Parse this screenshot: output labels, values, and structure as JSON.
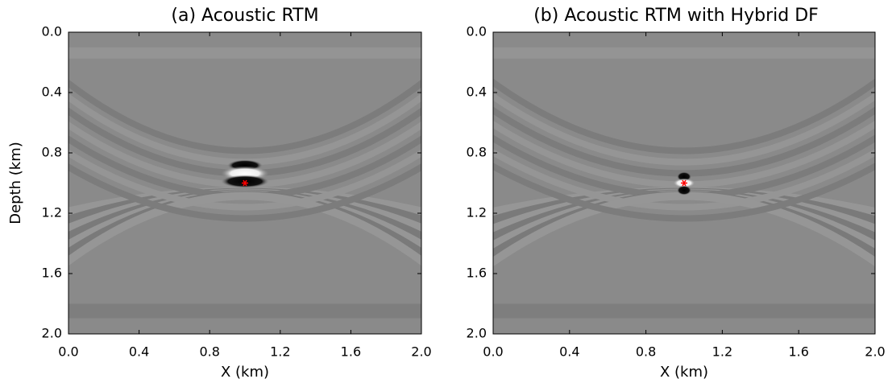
{
  "chart_data": [
    {
      "type": "image",
      "title": "(a) Acoustic RTM",
      "xlabel": "X (km)",
      "ylabel": "Depth (km)",
      "xlim": [
        0.0,
        2.0
      ],
      "ylim": [
        2.0,
        0.0
      ],
      "xticks": [
        {
          "value": 0.0,
          "label": "0.0"
        },
        0.4,
        0.8,
        1.2,
        1.6,
        {
          "value": 2.0,
          "label": "2.0"
        }
      ],
      "yticks": [
        {
          "value": 0.0,
          "label": "0.0"
        },
        0.4,
        0.8,
        1.2,
        1.6,
        {
          "value": 2.0,
          "label": "2.0"
        }
      ],
      "points": {
        "x": [
          1.0
        ],
        "y": [
          1.0
        ],
        "color": "#ff0000"
      }
    },
    {
      "type": "image",
      "title": "(b) Acoustic RTM with Hybrid DF",
      "xlabel": "X (km)",
      "xlim": [
        0.0,
        2.0
      ],
      "ylim": [
        2.0,
        0.0
      ],
      "xticks": [
        {
          "value": 0.0,
          "label": "0.0"
        },
        0.4,
        0.8,
        1.2,
        1.6,
        {
          "value": 2.0,
          "label": "2.0"
        }
      ],
      "yticks": [
        {
          "value": 0.0,
          "label": "0.0"
        },
        0.4,
        0.8,
        1.2,
        1.6,
        {
          "value": 2.0,
          "label": "2.0"
        }
      ],
      "points": {
        "x": [
          1.0
        ],
        "y": [
          1.0
        ],
        "color": "#ff0000"
      }
    }
  ]
}
